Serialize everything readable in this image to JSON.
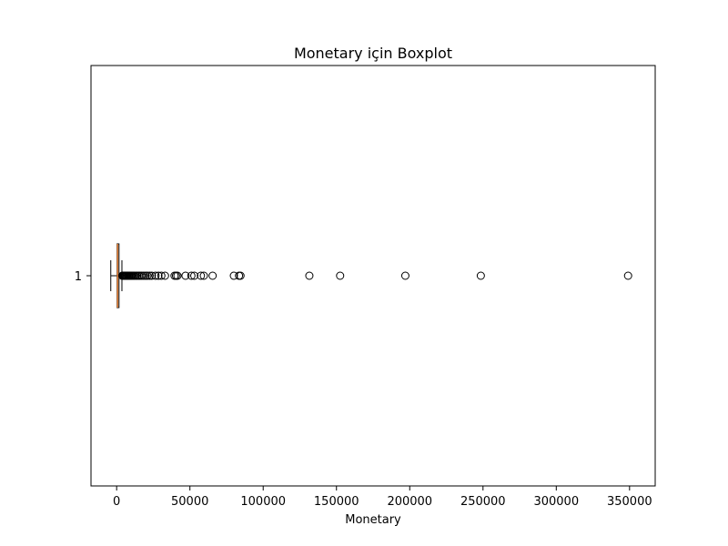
{
  "chart_data": {
    "type": "boxplot",
    "orientation": "horizontal",
    "title": "Monetary için Boxplot",
    "xlabel": "Monetary",
    "ylabel": "",
    "xlim": [
      -17500,
      367500
    ],
    "xticks": [
      0,
      50000,
      100000,
      150000,
      200000,
      250000,
      300000,
      350000
    ],
    "xtick_labels": [
      "0",
      "50000",
      "100000",
      "150000",
      "200000",
      "250000",
      "300000",
      "350000"
    ],
    "categories": [
      "1"
    ],
    "grid": false,
    "box": {
      "whisker_low": -4000,
      "q1": 300,
      "median": 650,
      "q3": 1600,
      "whisker_high": 3600
    },
    "outliers": [
      3800,
      4200,
      4600,
      5000,
      5400,
      5800,
      6300,
      6800,
      7300,
      7900,
      8500,
      9100,
      9800,
      10500,
      11300,
      12100,
      13000,
      14000,
      15000,
      16000,
      17200,
      18500,
      19800,
      21000,
      22500,
      24000,
      26500,
      28500,
      30500,
      33000,
      39500,
      40500,
      41500,
      47000,
      51000,
      53000,
      57500,
      59500,
      65500,
      80000,
      83500,
      84500,
      131500,
      152500,
      197000,
      248500,
      349000
    ],
    "colors": {
      "box_edge": "#000000",
      "median": "#e8833a",
      "outlier_edge": "#000000"
    }
  }
}
